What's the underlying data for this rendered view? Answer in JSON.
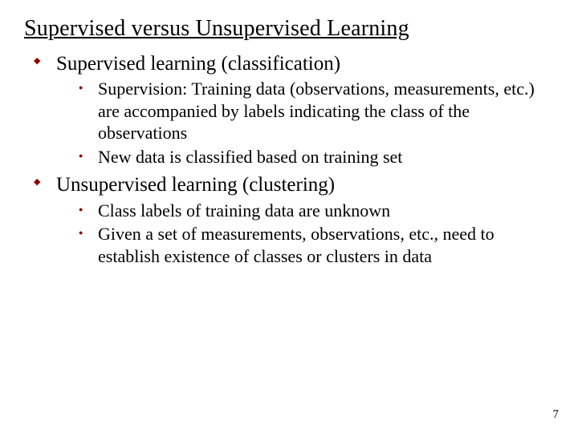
{
  "slide": {
    "title": "Supervised versus Unsupervised Learning",
    "page_number": "7",
    "colors": {
      "bullet": "#8b0000",
      "text": "#000000",
      "background": "#ffffff"
    },
    "typography": {
      "title_fontsize": 28,
      "level1_fontsize": 25,
      "level2_fontsize": 22,
      "font_family": "Garamond"
    },
    "items": [
      {
        "label": "Supervised learning (classification)",
        "children": [
          "Supervision: Training data (observations, measurements, etc.) are accompanied by labels indicating the class of the observations",
          "New data is classified based on training set"
        ]
      },
      {
        "label": "Unsupervised learning (clustering)",
        "children": [
          "Class labels of training data are unknown",
          "Given a set of measurements, observations, etc., need to establish existence of classes or clusters in data"
        ]
      }
    ]
  }
}
